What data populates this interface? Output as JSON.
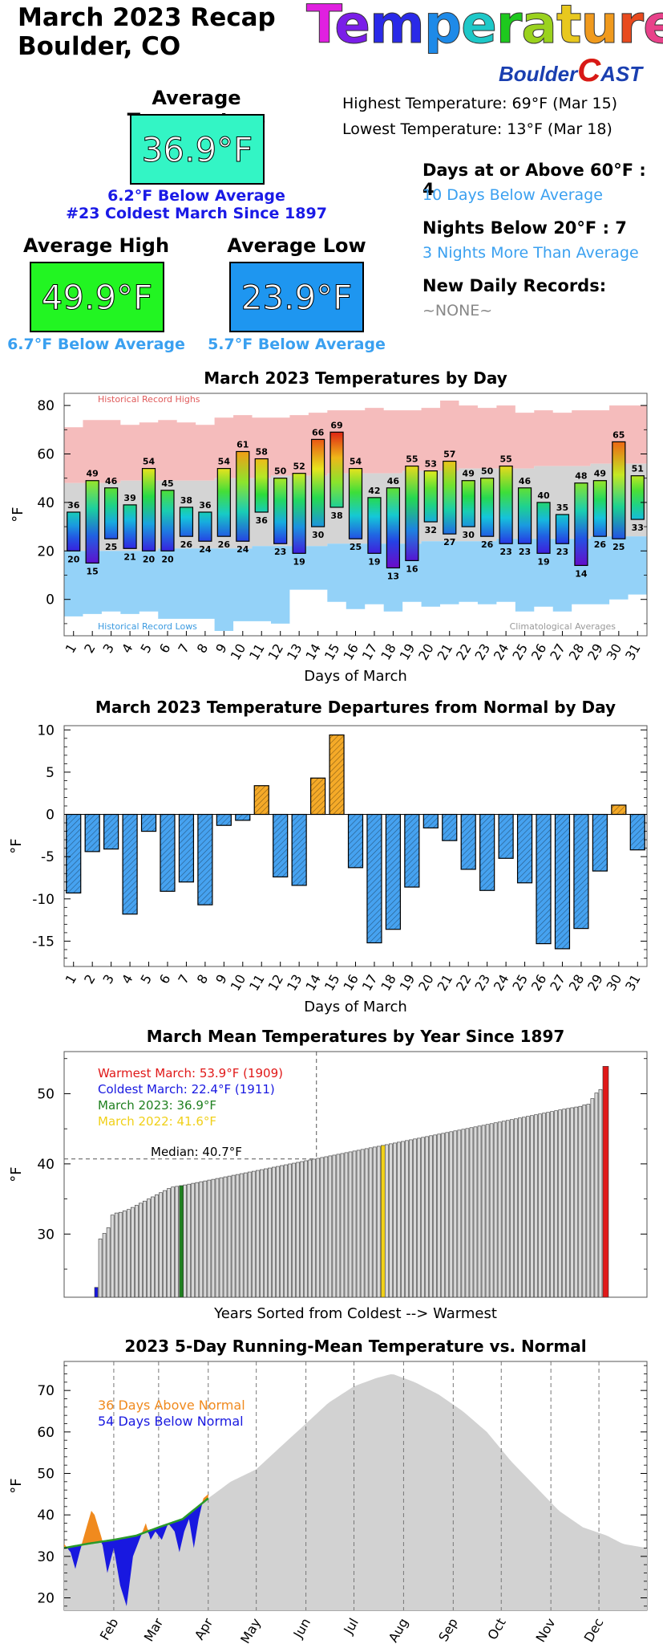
{
  "header": {
    "title_line1": "March 2023 Recap",
    "title_line2": "Boulder, CO",
    "banner_letters": [
      "T",
      "e",
      "m",
      "p",
      "e",
      "r",
      "a",
      "t",
      "u",
      "r",
      "e"
    ],
    "banner_colors": [
      "#e020e0",
      "#7a1ee8",
      "#2a2ae8",
      "#1e8ae8",
      "#1ec8c8",
      "#1ec81e",
      "#9ad21e",
      "#e8c81e",
      "#f09a1e",
      "#e84a1e",
      "#e8428a"
    ],
    "logo_left": "Boulder",
    "logo_mid": "C",
    "logo_right": "AST"
  },
  "summary": {
    "avg_label": "Average Temperature",
    "avg_value": "36.9°F",
    "avg_note1": "6.2°F Below Average",
    "avg_note2": "#23 Coldest March Since 1897",
    "high_label": "Average High",
    "high_value": "49.9°F",
    "high_note": "6.7°F Below Average",
    "low_label": "Average Low",
    "low_value": "23.9°F",
    "low_note": "5.7°F  Below Average",
    "highest": "Highest Temperature: 69°F (Mar 15)",
    "lowest": "Lowest Temperature: 13°F (Mar 18)",
    "days60_label": "Days at or Above 60°F : 4",
    "days60_note": "10 Days Below Average",
    "nights20_label": "Nights Below 20°F : 7",
    "nights20_note": "3 Nights More Than Average",
    "records_label": "New Daily Records:",
    "records_value": "~NONE~",
    "colors": {
      "avg_box": "#33f5c5",
      "high_box": "#22f522",
      "low_box": "#1e96f0",
      "note_dark": "#1a1ae6",
      "note_light": "#3aa0f0"
    }
  },
  "chart_data": [
    {
      "type": "bar",
      "title": "March 2023 Temperatures by Day",
      "xlabel": "Days of March",
      "ylabel": "°F",
      "ylim": [
        -15,
        85
      ],
      "yticks": [
        0,
        20,
        40,
        60,
        80
      ],
      "annotations": [
        "Historical Record Highs",
        "Historical Record Lows",
        "Climatological Averages"
      ],
      "categories": [
        "1",
        "2",
        "3",
        "4",
        "5",
        "6",
        "7",
        "8",
        "9",
        "10",
        "11",
        "12",
        "13",
        "14",
        "15",
        "16",
        "17",
        "18",
        "19",
        "20",
        "21",
        "22",
        "23",
        "24",
        "25",
        "26",
        "27",
        "28",
        "29",
        "30",
        "31"
      ],
      "highs": [
        36,
        49,
        46,
        39,
        54,
        45,
        38,
        36,
        54,
        61,
        58,
        50,
        52,
        66,
        69,
        54,
        42,
        46,
        55,
        53,
        57,
        49,
        50,
        55,
        46,
        40,
        35,
        48,
        49,
        65,
        51
      ],
      "lows": [
        20,
        15,
        25,
        21,
        20,
        20,
        26,
        24,
        26,
        24,
        36,
        23,
        19,
        30,
        38,
        25,
        19,
        13,
        16,
        32,
        27,
        30,
        26,
        23,
        23,
        19,
        23,
        14,
        26,
        25,
        33
      ],
      "record_highs": [
        71,
        74,
        74,
        72,
        73,
        74,
        73,
        72,
        75,
        76,
        75,
        75,
        76,
        77,
        78,
        78,
        79,
        78,
        78,
        79,
        82,
        80,
        79,
        80,
        77,
        78,
        77,
        78,
        78,
        80,
        80
      ],
      "avg_highs": [
        48,
        48,
        48,
        49,
        49,
        49,
        49,
        49,
        50,
        50,
        50,
        51,
        51,
        51,
        52,
        52,
        52,
        52,
        53,
        53,
        53,
        54,
        54,
        54,
        54,
        55,
        55,
        55,
        56,
        56,
        56
      ],
      "avg_lows": [
        20,
        20,
        20,
        20,
        20,
        21,
        21,
        21,
        21,
        21,
        22,
        22,
        22,
        22,
        23,
        23,
        23,
        23,
        23,
        24,
        24,
        24,
        24,
        25,
        25,
        25,
        25,
        25,
        26,
        26,
        26
      ],
      "record_lows": [
        -7,
        -6,
        -5,
        -6,
        -5,
        -8,
        -8,
        -8,
        -13,
        -9,
        -9,
        -10,
        4,
        4,
        -1,
        -4,
        -2,
        -5,
        -1,
        -3,
        -2,
        -1,
        -2,
        -1,
        -5,
        -3,
        -5,
        -2,
        -2,
        0,
        2
      ]
    },
    {
      "type": "bar",
      "title": "March 2023 Temperature Departures from Normal by Day",
      "xlabel": "Days of March",
      "ylabel": "°F",
      "ylim": [
        -18,
        10.5
      ],
      "yticks": [
        10,
        5,
        0,
        -5,
        -10,
        -15
      ],
      "categories": [
        "1",
        "2",
        "3",
        "4",
        "5",
        "6",
        "7",
        "8",
        "9",
        "10",
        "11",
        "12",
        "13",
        "14",
        "15",
        "16",
        "17",
        "18",
        "19",
        "20",
        "21",
        "22",
        "23",
        "24",
        "25",
        "26",
        "27",
        "28",
        "29",
        "30",
        "31"
      ],
      "values": [
        -9.3,
        -4.4,
        -4.1,
        -11.8,
        -2.0,
        -9.1,
        -8.0,
        -10.7,
        -1.3,
        -0.7,
        3.4,
        -7.4,
        -8.4,
        4.3,
        9.4,
        -6.3,
        -15.2,
        -13.6,
        -8.6,
        -1.6,
        -3.1,
        -6.5,
        -9.0,
        -5.2,
        -8.1,
        -15.3,
        -15.9,
        -13.5,
        -6.7,
        1.1,
        -4.2
      ],
      "colors": {
        "above": "#f5aa28",
        "below": "#46a2f0"
      }
    },
    {
      "type": "bar",
      "title": "March Mean Temperatures by Year Since 1897",
      "xlabel": "Years Sorted from Coldest --> Warmest",
      "ylabel": "°F",
      "ylim": [
        21,
        56
      ],
      "yticks": [
        30,
        40,
        50
      ],
      "median": 40.7,
      "median_label": "Median: 40.7°F",
      "legend": [
        {
          "text": "Warmest March: 53.9°F (1909)",
          "color": "#e01818"
        },
        {
          "text": "Coldest March: 22.4°F (1911)",
          "color": "#1818e0"
        },
        {
          "text": "March 2023: 36.9°F",
          "color": "#208020"
        },
        {
          "text": "March 2022: 41.6°F",
          "color": "#f0d018"
        }
      ],
      "n_years": 127,
      "sorted_values_start": [
        22.4,
        29.3,
        30.1,
        30.9,
        32.7,
        33.0,
        33.1,
        33.3,
        33.5,
        33.8,
        34.1,
        34.4,
        34.7,
        35.0,
        35.3,
        35.6,
        35.9,
        36.2,
        36.5,
        36.7,
        36.8,
        36.9
      ],
      "sorted_values_end": [
        47.9,
        48.0,
        48.1,
        48.2,
        48.4,
        48.5,
        49.3,
        50.1,
        50.6,
        53.9
      ],
      "highlight_march_2023_rank": 22,
      "highlight_march_2022_rank": 72
    },
    {
      "type": "area",
      "title": "2023 5-Day Running-Mean Temperature vs. Normal",
      "ylabel": "°F",
      "ylim": [
        17,
        77
      ],
      "yticks": [
        20,
        30,
        40,
        50,
        60,
        70
      ],
      "xlabel_months": [
        "Feb",
        "Mar",
        "Apr",
        "May",
        "Jun",
        "Jul",
        "Aug",
        "Sep",
        "Oct",
        "Nov",
        "Dec"
      ],
      "legend": [
        {
          "text": "36 Days Above Normal",
          "color": "#f08a1e"
        },
        {
          "text": "54 Days Below Normal",
          "color": "#1818e0"
        }
      ],
      "normal_by_day": [
        [
          1,
          32
        ],
        [
          15,
          33
        ],
        [
          32,
          34
        ],
        [
          46,
          35
        ],
        [
          60,
          37
        ],
        [
          75,
          39
        ],
        [
          91,
          44
        ],
        [
          105,
          48
        ],
        [
          121,
          51
        ],
        [
          135,
          56
        ],
        [
          152,
          62
        ],
        [
          166,
          67
        ],
        [
          182,
          71
        ],
        [
          196,
          73
        ],
        [
          206,
          74
        ],
        [
          220,
          72
        ],
        [
          235,
          69
        ],
        [
          250,
          65
        ],
        [
          265,
          60
        ],
        [
          280,
          53
        ],
        [
          295,
          47
        ],
        [
          310,
          41
        ],
        [
          325,
          37
        ],
        [
          340,
          35
        ],
        [
          350,
          33
        ],
        [
          365,
          32
        ]
      ],
      "observed_by_day": [
        [
          1,
          33
        ],
        [
          5,
          31
        ],
        [
          8,
          27
        ],
        [
          12,
          33
        ],
        [
          15,
          37
        ],
        [
          18,
          41
        ],
        [
          20,
          40
        ],
        [
          24,
          35
        ],
        [
          28,
          26
        ],
        [
          32,
          32
        ],
        [
          36,
          23
        ],
        [
          40,
          18
        ],
        [
          44,
          30
        ],
        [
          48,
          34
        ],
        [
          52,
          38
        ],
        [
          55,
          34
        ],
        [
          58,
          36
        ],
        [
          62,
          34
        ],
        [
          66,
          38
        ],
        [
          70,
          36
        ],
        [
          73,
          31
        ],
        [
          76,
          36
        ],
        [
          79,
          39
        ],
        [
          82,
          32
        ],
        [
          85,
          39
        ],
        [
          88,
          44
        ],
        [
          91,
          45
        ]
      ],
      "colors": {
        "normal": "#d2d2d2",
        "above": "#f08a1e",
        "below": "#1818e0",
        "line": "#2a9a2a"
      }
    }
  ]
}
